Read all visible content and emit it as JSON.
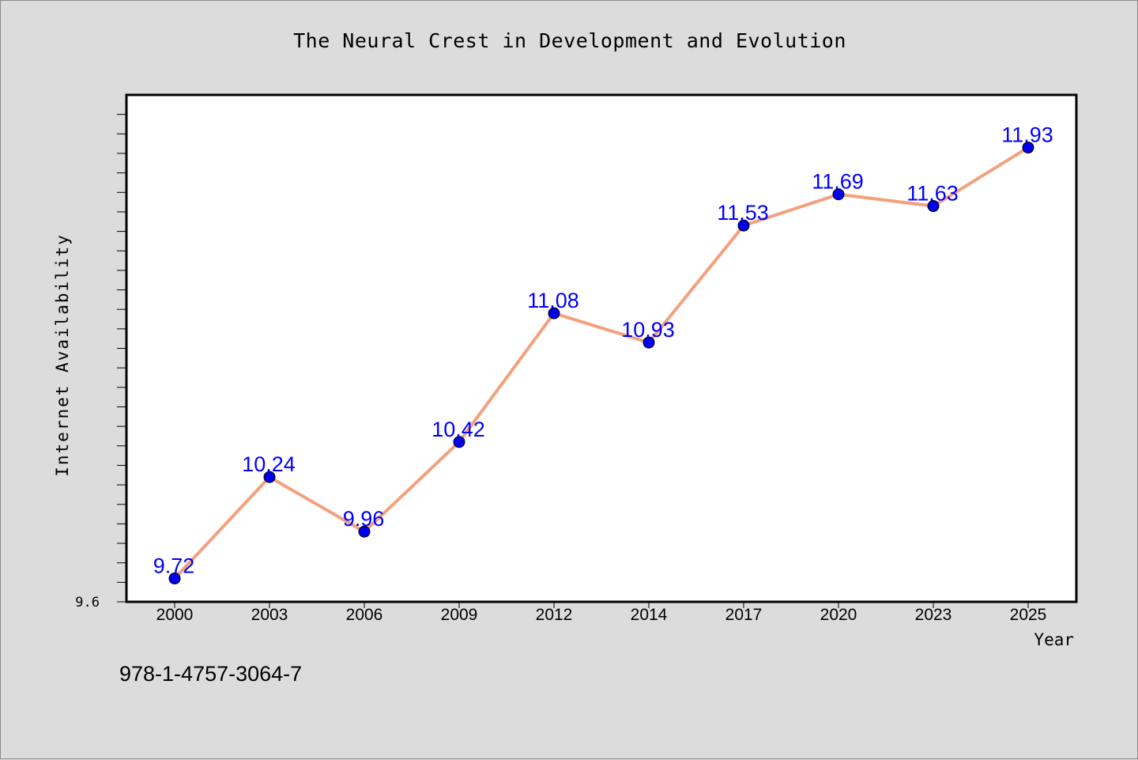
{
  "chart_data": {
    "type": "line",
    "title": "The Neural Crest in Development and Evolution",
    "xlabel": "Year",
    "ylabel": "Internet Availability",
    "categories": [
      "2000",
      "2003",
      "2006",
      "2009",
      "2012",
      "2014",
      "2017",
      "2020",
      "2023",
      "2025"
    ],
    "series": [
      {
        "values": [
          9.72,
          10.24,
          9.96,
          10.42,
          11.08,
          10.93,
          11.53,
          11.69,
          11.63,
          11.93
        ],
        "data_labels": [
          "9.72",
          "10.24",
          "9.96",
          "10.42",
          "11.08",
          "10.93",
          "11.53",
          "11.69",
          "11.63",
          "11.93"
        ],
        "line_color": "#f4a07c",
        "marker_color": "#0000ee"
      }
    ],
    "y_tick_labels": [
      "9.6"
    ],
    "ylim": [
      9.6,
      12.2
    ],
    "grid": false,
    "legend": "none",
    "data_label_color": "#0000ff"
  },
  "footer_text": "978-1-4757-3064-7"
}
